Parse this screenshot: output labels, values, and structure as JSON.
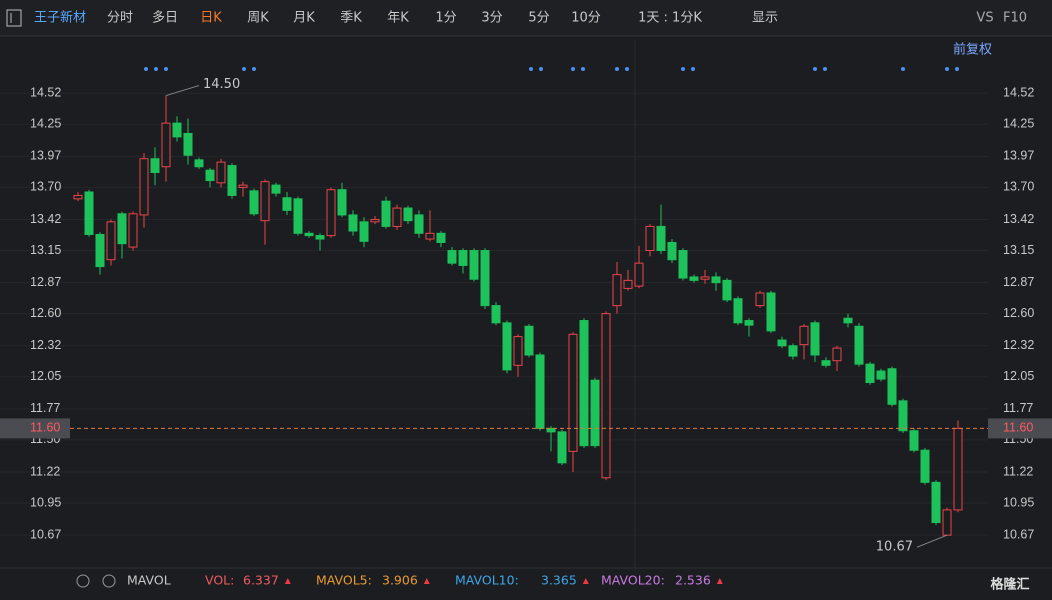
{
  "toolbar": {
    "stock": "王子新材",
    "tabs": [
      "分时",
      "多日",
      "日K",
      "周K",
      "月K",
      "季K",
      "年K",
      "1分",
      "3分",
      "5分",
      "10分",
      "1天 : 1分K",
      "显示"
    ],
    "right": [
      "VS",
      "F10"
    ],
    "adjust": "前复权"
  },
  "chart_data": {
    "type": "candlestick",
    "up_color": "#e8454a",
    "down_color": "#1ec25a",
    "open": [
      13.6,
      13.66,
      13.29,
      13.07,
      13.47,
      13.18,
      13.46,
      13.95,
      13.88,
      14.26,
      14.17,
      13.94,
      13.85,
      13.74,
      13.89,
      13.7,
      13.67,
      13.41,
      13.72,
      13.61,
      13.6,
      13.3,
      13.28,
      13.28,
      13.68,
      13.46,
      13.4,
      13.4,
      13.58,
      13.36,
      13.52,
      13.46,
      13.25,
      13.3,
      13.15,
      13.15,
      13.15,
      13.15,
      12.67,
      12.52,
      12.15,
      12.49,
      12.24,
      11.6,
      11.57,
      11.4,
      12.54,
      12.02,
      11.17,
      12.67,
      12.82,
      12.84,
      13.15,
      13.36,
      13.22,
      13.15,
      12.92,
      12.9,
      12.92,
      12.89,
      12.73,
      12.54,
      12.67,
      12.78,
      12.37,
      12.32,
      12.33,
      12.52,
      12.19,
      12.19,
      12.56,
      12.49,
      12.16,
      12.1,
      12.12,
      11.84,
      11.58,
      11.41,
      11.13,
      10.67,
      10.89
    ],
    "high": [
      13.66,
      13.68,
      13.31,
      13.42,
      13.49,
      13.49,
      14.0,
      14.05,
      14.5,
      14.32,
      14.3,
      13.96,
      13.87,
      13.95,
      13.91,
      13.75,
      13.69,
      13.77,
      13.74,
      13.66,
      13.62,
      13.32,
      13.3,
      13.7,
      13.74,
      13.5,
      13.44,
      13.45,
      13.62,
      13.55,
      13.54,
      13.5,
      13.5,
      13.32,
      13.18,
      13.17,
      13.17,
      13.17,
      12.7,
      12.54,
      12.42,
      12.51,
      12.26,
      11.62,
      11.59,
      12.44,
      12.56,
      12.04,
      12.62,
      13.05,
      12.98,
      13.19,
      13.38,
      13.55,
      13.25,
      13.17,
      12.94,
      12.98,
      12.96,
      12.91,
      12.75,
      12.56,
      12.8,
      12.8,
      12.4,
      12.34,
      12.51,
      12.54,
      12.22,
      12.32,
      12.6,
      12.52,
      12.18,
      12.12,
      12.14,
      11.86,
      11.6,
      11.43,
      11.15,
      10.91,
      11.67
    ],
    "low": [
      13.58,
      13.27,
      12.94,
      13.02,
      13.08,
      13.15,
      13.35,
      13.72,
      13.75,
      14.1,
      13.9,
      13.86,
      13.7,
      13.7,
      13.6,
      13.62,
      13.45,
      13.2,
      13.62,
      13.46,
      13.28,
      13.26,
      13.15,
      13.26,
      13.44,
      13.28,
      13.18,
      13.38,
      13.34,
      13.33,
      13.38,
      13.26,
      13.23,
      13.18,
      13.02,
      12.95,
      12.88,
      12.64,
      12.5,
      12.08,
      12.05,
      12.22,
      11.58,
      11.4,
      11.28,
      11.22,
      11.43,
      11.43,
      11.15,
      12.6,
      12.8,
      12.82,
      13.1,
      13.12,
      13.04,
      12.89,
      12.87,
      12.86,
      12.8,
      12.7,
      12.5,
      12.4,
      12.65,
      12.43,
      12.3,
      12.2,
      12.2,
      12.18,
      12.13,
      12.1,
      12.48,
      12.14,
      11.98,
      12.01,
      11.79,
      11.56,
      11.39,
      11.11,
      10.76,
      10.67,
      10.87
    ],
    "close": [
      13.63,
      13.29,
      13.01,
      13.4,
      13.21,
      13.47,
      13.95,
      13.83,
      14.26,
      14.14,
      13.98,
      13.88,
      13.76,
      13.92,
      13.63,
      13.72,
      13.47,
      13.75,
      13.65,
      13.5,
      13.3,
      13.28,
      13.25,
      13.68,
      13.46,
      13.32,
      13.23,
      13.42,
      13.36,
      13.52,
      13.41,
      13.3,
      13.3,
      13.22,
      13.04,
      13.02,
      12.9,
      12.67,
      12.52,
      12.11,
      12.4,
      12.24,
      11.6,
      11.57,
      11.3,
      12.42,
      11.45,
      11.45,
      12.6,
      12.94,
      12.89,
      13.04,
      13.36,
      13.15,
      13.07,
      12.91,
      12.89,
      12.92,
      12.87,
      12.72,
      12.52,
      12.5,
      12.78,
      12.45,
      12.32,
      12.23,
      12.49,
      12.24,
      12.15,
      12.3,
      12.52,
      12.16,
      12.0,
      12.03,
      11.81,
      11.58,
      11.41,
      11.13,
      10.78,
      10.89,
      11.6
    ],
    "ylim": [
      10.41,
      14.81
    ],
    "yticks": [
      14.52,
      14.25,
      13.97,
      {
        "value": 13.7,
        "label": "13.70"
      },
      13.42,
      13.15,
      12.87,
      {
        "value": 12.6,
        "label": "12.60"
      },
      12.32,
      12.05,
      11.77,
      {
        "value": 11.5,
        "label": "11.50"
      },
      11.22,
      10.95,
      10.67
    ],
    "grid": true,
    "max_label": {
      "value": 14.5,
      "label": "14.50"
    },
    "min_label": 10.67,
    "price_line": {
      "value": 11.6,
      "label": "11.60"
    }
  },
  "indicator": {
    "name": "MAVOL",
    "items": [
      {
        "label": "VOL:",
        "value": 6.337,
        "color": "#ef5a64"
      },
      {
        "label": "MAVOL5:",
        "value": 3.906,
        "color": "#e99a35"
      },
      {
        "label": "MAVOL10:",
        "value": 3.365,
        "color": "#3ea6e6"
      },
      {
        "label": "MAVOL20:",
        "value": 2.536,
        "color": "#c77be0"
      }
    ]
  },
  "logo": "格隆汇"
}
